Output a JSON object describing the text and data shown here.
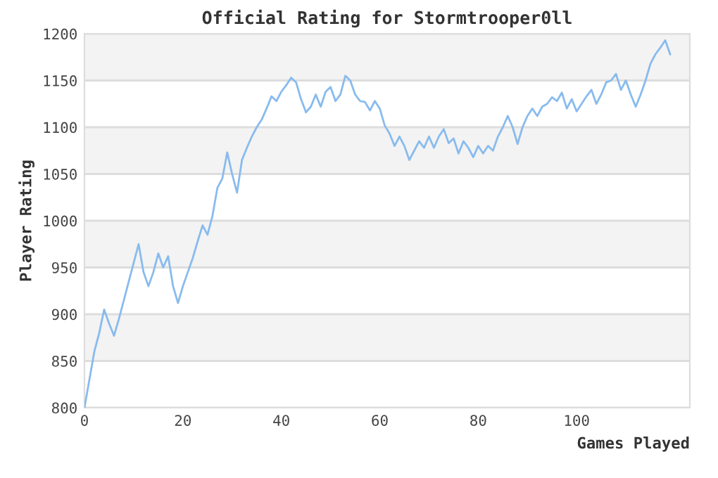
{
  "chart_data": {
    "type": "line",
    "title": "Official Rating for Stormtrooper0ll",
    "xlabel": "Games Played",
    "ylabel": "Player Rating",
    "series": [
      {
        "color": "#88bbee",
        "x": [
          0,
          1,
          2,
          3,
          4,
          5,
          6,
          7,
          8,
          9,
          10,
          11,
          12,
          13,
          14,
          15,
          16,
          17,
          18,
          19,
          20,
          21,
          22,
          23,
          24,
          25,
          26,
          27,
          28,
          29,
          30,
          31,
          32,
          33,
          34,
          35,
          36,
          37,
          38,
          39,
          40,
          41,
          42,
          43,
          44,
          45,
          46,
          47,
          48,
          49,
          50,
          51,
          52,
          53,
          54,
          55,
          56,
          57,
          58,
          59,
          60,
          61,
          62,
          63,
          64,
          65,
          66,
          67,
          68,
          69,
          70,
          71,
          72,
          73,
          74,
          75,
          76,
          77,
          78,
          79,
          80,
          81,
          82,
          83,
          84,
          85,
          86,
          87,
          88,
          89,
          90,
          91,
          92,
          93,
          94,
          95,
          96,
          97,
          98,
          99,
          100,
          101,
          102,
          103,
          104,
          105,
          106,
          107,
          108,
          109,
          110,
          111,
          112,
          113,
          114,
          115,
          116,
          117,
          118,
          119
        ],
        "values": [
          800,
          830,
          860,
          880,
          905,
          890,
          877,
          895,
          915,
          935,
          955,
          975,
          945,
          930,
          945,
          965,
          950,
          962,
          930,
          912,
          930,
          945,
          960,
          978,
          995,
          985,
          1005,
          1035,
          1045,
          1073,
          1050,
          1030,
          1065,
          1078,
          1090,
          1100,
          1108,
          1120,
          1133,
          1128,
          1138,
          1145,
          1153,
          1148,
          1130,
          1116,
          1122,
          1135,
          1122,
          1138,
          1143,
          1128,
          1135,
          1155,
          1150,
          1135,
          1128,
          1127,
          1118,
          1128,
          1120,
          1102,
          1093,
          1080,
          1090,
          1080,
          1065,
          1075,
          1085,
          1078,
          1090,
          1078,
          1090,
          1098,
          1083,
          1088,
          1072,
          1085,
          1078,
          1068,
          1080,
          1072,
          1080,
          1075,
          1090,
          1100,
          1112,
          1100,
          1082,
          1100,
          1112,
          1120,
          1112,
          1122,
          1125,
          1132,
          1128,
          1137,
          1120,
          1130,
          1117,
          1125,
          1133,
          1140,
          1125,
          1135,
          1148,
          1150,
          1157,
          1140,
          1150,
          1135,
          1122,
          1135,
          1150,
          1168,
          1178,
          1185,
          1193,
          1178
        ]
      }
    ],
    "xlim": [
      0,
      123
    ],
    "xticks": [
      0,
      20,
      40,
      60,
      80,
      100
    ],
    "ylim": [
      800,
      1200
    ],
    "yticks": [
      800,
      850,
      900,
      950,
      1000,
      1050,
      1100,
      1150,
      1200
    ],
    "grid": "y",
    "marker": "none",
    "line_style": "solid"
  }
}
